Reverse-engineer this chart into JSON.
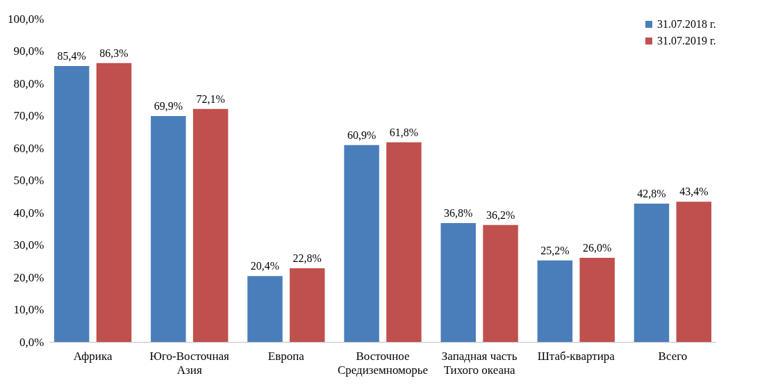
{
  "chart_data": {
    "type": "bar",
    "categories": [
      "Африка",
      "Юго-Восточная Азия",
      "Европа",
      "Восточное Средиземноморье",
      "Западная часть Тихого океана",
      "Штаб-квартира",
      "Всего"
    ],
    "series": [
      {
        "name": "31.07.2018 г.",
        "color": "#4a7ebb",
        "values": [
          85.4,
          69.9,
          20.4,
          60.9,
          36.8,
          25.2,
          42.8
        ],
        "value_labels": [
          "85,4%",
          "69,9%",
          "20,4%",
          "60,9%",
          "36,8%",
          "25,2%",
          "42,8%"
        ]
      },
      {
        "name": "31.07.2019 г.",
        "color": "#c0504d",
        "values": [
          86.3,
          72.1,
          22.8,
          61.8,
          36.2,
          26.0,
          43.4
        ],
        "value_labels": [
          "86,3%",
          "72,1%",
          "22,8%",
          "61,8%",
          "36,2%",
          "26,0%",
          "43,4%"
        ]
      }
    ],
    "ylim": [
      0,
      100
    ],
    "yticks": [
      {
        "value": 0,
        "label": "0,0%"
      },
      {
        "value": 10,
        "label": "10,0%"
      },
      {
        "value": 20,
        "label": "20,0%"
      },
      {
        "value": 30,
        "label": "30,0%"
      },
      {
        "value": 40,
        "label": "40,0%"
      },
      {
        "value": 50,
        "label": "50,0%"
      },
      {
        "value": 60,
        "label": "60,0%"
      },
      {
        "value": 70,
        "label": "70,0%"
      },
      {
        "value": 80,
        "label": "80,0%"
      },
      {
        "value": 90,
        "label": "90,0%"
      },
      {
        "value": 100,
        "label": "100,0%"
      }
    ],
    "grid": false,
    "legend": "top right"
  }
}
